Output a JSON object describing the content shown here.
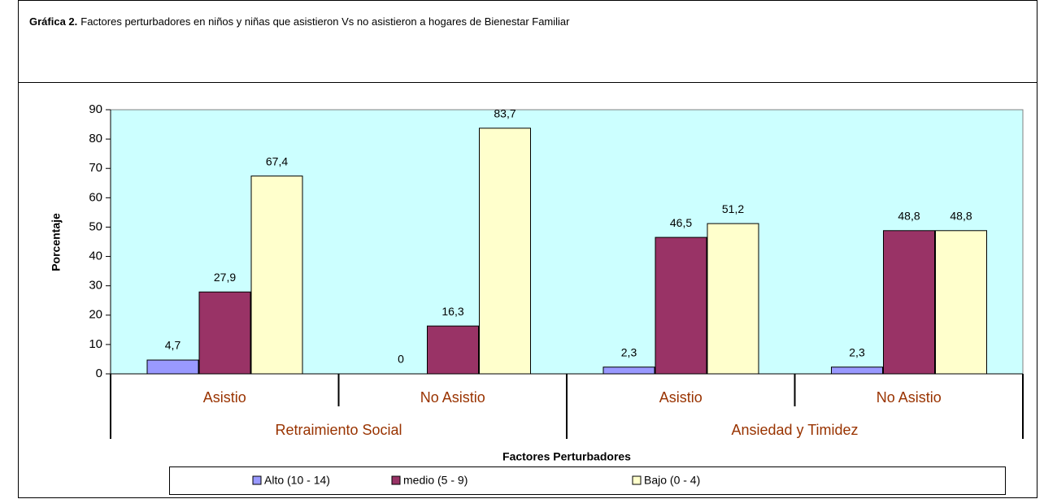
{
  "chart_data": {
    "type": "bar",
    "title_label": "Gráfica 2.",
    "title": "Factores perturbadores en niños y niñas que asistieron Vs no asistieron a hogares de Bienestar Familiar",
    "categories": [
      "Asistio",
      "No Asistio",
      "Asistio",
      "No Asistio"
    ],
    "category_groups": [
      "Retraimiento Social",
      "Ansiedad y Timidez"
    ],
    "series": [
      {
        "name": "Alto (10 - 14)",
        "color": "#9999ff",
        "values": [
          4.7,
          0,
          2.3,
          2.3
        ],
        "value_labels": [
          "4,7",
          "0",
          "2,3",
          "2,3"
        ]
      },
      {
        "name": "medio (5 - 9)",
        "color": "#993366",
        "values": [
          27.9,
          16.3,
          46.5,
          48.8
        ],
        "value_labels": [
          "27,9",
          "16,3",
          "46,5",
          "48,8"
        ]
      },
      {
        "name": "Bajo (0 - 4)",
        "color": "#ffffcc",
        "values": [
          67.4,
          83.7,
          51.2,
          48.8
        ],
        "value_labels": [
          "67,4",
          "83,7",
          "51,2",
          "48,8"
        ]
      }
    ],
    "ylabel": "Porcentaje",
    "xlabel": "Factores Perturbadores",
    "ylim": [
      0,
      90
    ],
    "yticks": [
      0,
      10,
      20,
      30,
      40,
      50,
      60,
      70,
      80,
      90
    ],
    "plot_background": "#ccffff",
    "legend": "bottom"
  }
}
